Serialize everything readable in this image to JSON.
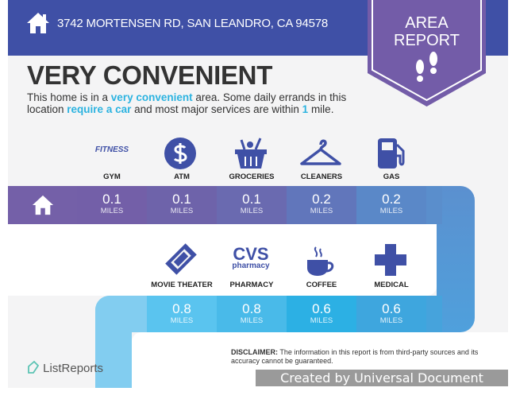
{
  "header": {
    "address": "3742 MORTENSEN RD, SAN LEANDRO, CA 94578",
    "badge_line1": "AREA",
    "badge_line2": "REPORT"
  },
  "title": "VERY CONVENIENT",
  "description": {
    "p1": "This home is in a ",
    "h1": "very convenient",
    "p2": " area. Some daily errands in this location ",
    "h2": "require a car",
    "p3": " and most major services are within ",
    "h3": "1",
    "p4": " mile."
  },
  "row1": [
    {
      "label": "GYM",
      "value": "0.1",
      "unit": "MILES",
      "icon": "fitness-logo",
      "icon_text": "FITNESS"
    },
    {
      "label": "ATM",
      "value": "0.1",
      "unit": "MILES",
      "icon": "dollar-icon"
    },
    {
      "label": "GROCERIES",
      "value": "0.1",
      "unit": "MILES",
      "icon": "basket-icon"
    },
    {
      "label": "CLEANERS",
      "value": "0.2",
      "unit": "MILES",
      "icon": "hanger-icon"
    },
    {
      "label": "GAS",
      "value": "0.2",
      "unit": "MILES",
      "icon": "gas-pump-icon"
    }
  ],
  "row2": [
    {
      "label": "MOVIE THEATER",
      "value": "0.8",
      "unit": "MILES",
      "icon": "ticket-icon"
    },
    {
      "label": "PHARMACY",
      "value": "0.8",
      "unit": "MILES",
      "icon": "cvs-logo",
      "icon_text": "CVS",
      "icon_sub": "pharmacy"
    },
    {
      "label": "COFFEE",
      "value": "0.6",
      "unit": "MILES",
      "icon": "coffee-cup-icon"
    },
    {
      "label": "MEDICAL",
      "value": "0.6",
      "unit": "MILES",
      "icon": "medical-cross-icon"
    }
  ],
  "footer": {
    "logo": "ListReports",
    "disclaimer_label": "DISCLAIMER:",
    "disclaimer": " The information in this report is from third-party sources and its accuracy cannot be guaranteed.",
    "watermark": "Created by Universal Document Converter"
  },
  "colors": {
    "header": "#3f50a6",
    "badge": "#735ca8",
    "accent": "#2cb3e0",
    "icon": "#3f50a6"
  }
}
